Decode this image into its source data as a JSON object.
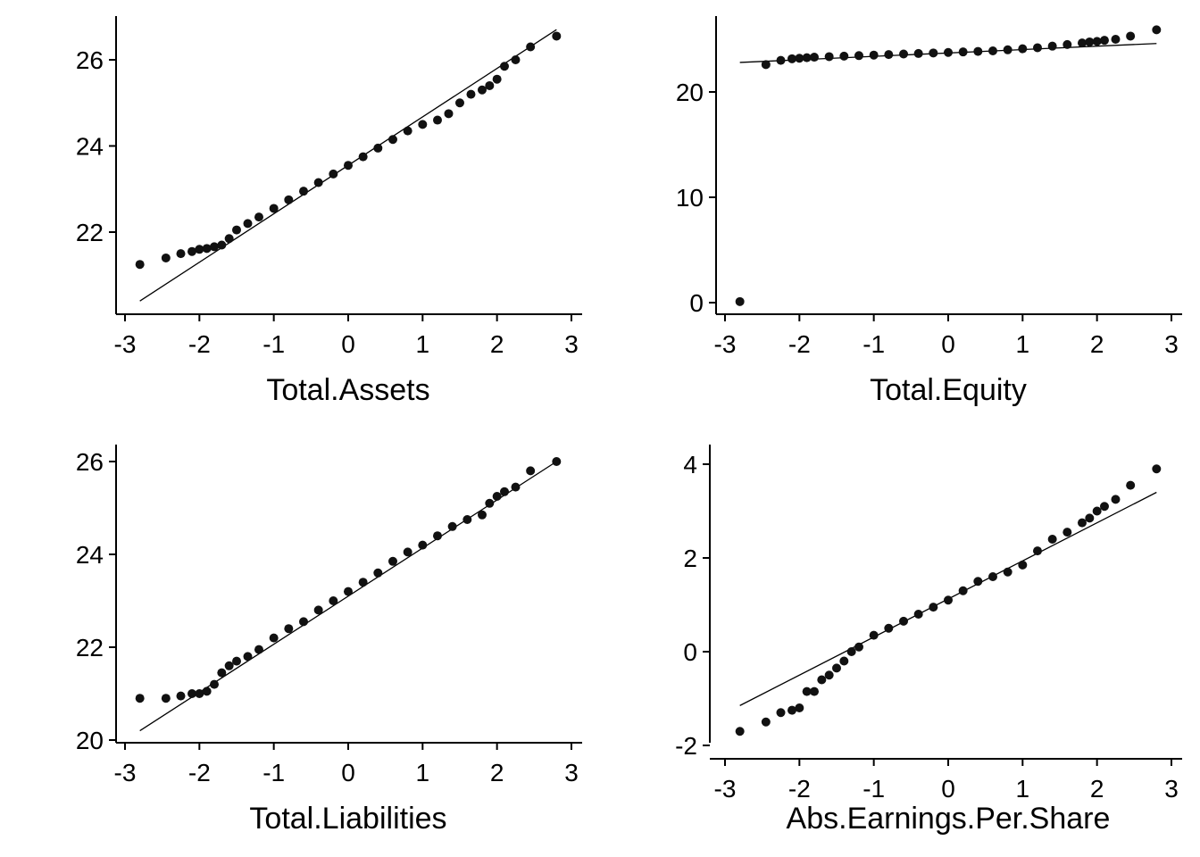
{
  "chart_data": [
    {
      "type": "scatter",
      "title": "",
      "xlabel": "Total.Assets",
      "ylabel": "",
      "xlim": [
        -3,
        3
      ],
      "ylim": [
        20.2,
        27.0
      ],
      "xticks": [
        "-3",
        "-2",
        "-1",
        "0",
        "1",
        "2",
        "3"
      ],
      "yticks": [
        "22",
        "24",
        "26"
      ],
      "reference_line": {
        "from": [
          -2.8,
          20.4
        ],
        "to": [
          2.8,
          26.7
        ]
      },
      "x": [
        -2.8,
        -2.45,
        -2.25,
        -2.1,
        -2.0,
        -1.9,
        -1.8,
        -1.7,
        -1.6,
        -1.5,
        -1.35,
        -1.2,
        -1.0,
        -0.8,
        -0.6,
        -0.4,
        -0.2,
        0.0,
        0.2,
        0.4,
        0.6,
        0.8,
        1.0,
        1.2,
        1.35,
        1.5,
        1.65,
        1.8,
        1.9,
        2.0,
        2.1,
        2.25,
        2.45,
        2.8
      ],
      "y": [
        21.25,
        21.4,
        21.5,
        21.55,
        21.6,
        21.62,
        21.66,
        21.7,
        21.85,
        22.05,
        22.2,
        22.35,
        22.55,
        22.75,
        22.95,
        23.15,
        23.35,
        23.55,
        23.75,
        23.95,
        24.15,
        24.35,
        24.5,
        24.6,
        24.75,
        25.0,
        25.2,
        25.3,
        25.4,
        25.55,
        25.85,
        26.0,
        26.3,
        26.55
      ]
    },
    {
      "type": "scatter",
      "title": "",
      "xlabel": "Total.Equity",
      "ylabel": "",
      "xlim": [
        -3,
        3
      ],
      "ylim": [
        -1,
        27
      ],
      "xticks": [
        "-3",
        "-2",
        "-1",
        "0",
        "1",
        "2",
        "3"
      ],
      "yticks": [
        "0",
        "10",
        "20"
      ],
      "reference_line": {
        "from": [
          -2.8,
          22.8
        ],
        "to": [
          2.8,
          24.6
        ]
      },
      "x": [
        -2.8,
        -2.45,
        -2.25,
        -2.1,
        -2.0,
        -1.9,
        -1.8,
        -1.6,
        -1.4,
        -1.2,
        -1.0,
        -0.8,
        -0.6,
        -0.4,
        -0.2,
        0.0,
        0.2,
        0.4,
        0.6,
        0.8,
        1.0,
        1.2,
        1.4,
        1.6,
        1.8,
        1.9,
        2.0,
        2.1,
        2.25,
        2.45,
        2.8
      ],
      "y": [
        0.1,
        22.6,
        23.0,
        23.15,
        23.2,
        23.25,
        23.3,
        23.35,
        23.4,
        23.45,
        23.5,
        23.55,
        23.6,
        23.65,
        23.7,
        23.75,
        23.8,
        23.85,
        23.9,
        24.0,
        24.1,
        24.2,
        24.35,
        24.5,
        24.65,
        24.75,
        24.8,
        24.9,
        25.0,
        25.3,
        25.9
      ]
    },
    {
      "type": "scatter",
      "title": "",
      "xlabel": "Total.Liabilities",
      "ylabel": "",
      "xlim": [
        -3,
        3
      ],
      "ylim": [
        19.8,
        26.4
      ],
      "xticks": [
        "-3",
        "-2",
        "-1",
        "0",
        "1",
        "2",
        "3"
      ],
      "yticks": [
        "20",
        "22",
        "24",
        "26"
      ],
      "reference_line": {
        "from": [
          -2.8,
          20.2
        ],
        "to": [
          2.8,
          26.0
        ]
      },
      "x": [
        -2.8,
        -2.45,
        -2.25,
        -2.1,
        -2.0,
        -1.9,
        -1.8,
        -1.7,
        -1.6,
        -1.5,
        -1.35,
        -1.2,
        -1.0,
        -0.8,
        -0.6,
        -0.4,
        -0.2,
        0.0,
        0.2,
        0.4,
        0.6,
        0.8,
        1.0,
        1.2,
        1.4,
        1.6,
        1.8,
        1.9,
        2.0,
        2.1,
        2.25,
        2.45,
        2.8
      ],
      "y": [
        20.9,
        20.9,
        20.95,
        21.0,
        21.0,
        21.05,
        21.2,
        21.45,
        21.6,
        21.7,
        21.8,
        21.95,
        22.2,
        22.4,
        22.55,
        22.8,
        23.0,
        23.2,
        23.4,
        23.6,
        23.85,
        24.05,
        24.2,
        24.4,
        24.6,
        24.75,
        24.85,
        25.1,
        25.25,
        25.35,
        25.45,
        25.8,
        26.0
      ]
    },
    {
      "type": "scatter",
      "title": "",
      "xlabel": "Abs.Earnings.Per.Share",
      "ylabel": "",
      "xlim": [
        -3,
        3
      ],
      "ylim": [
        -2.1,
        4.4
      ],
      "xticks": [
        "-3",
        "-2",
        "-1",
        "0",
        "1",
        "2",
        "3"
      ],
      "yticks": [
        "-2",
        "0",
        "2",
        "4"
      ],
      "reference_line": {
        "from": [
          -2.8,
          -1.15
        ],
        "to": [
          2.8,
          3.4
        ]
      },
      "x": [
        -2.8,
        -2.45,
        -2.25,
        -2.1,
        -2.0,
        -1.9,
        -1.8,
        -1.7,
        -1.6,
        -1.5,
        -1.4,
        -1.3,
        -1.2,
        -1.0,
        -0.8,
        -0.6,
        -0.4,
        -0.2,
        0.0,
        0.2,
        0.4,
        0.6,
        0.8,
        1.0,
        1.2,
        1.4,
        1.6,
        1.8,
        1.9,
        2.0,
        2.1,
        2.25,
        2.45,
        2.8
      ],
      "y": [
        -1.7,
        -1.5,
        -1.3,
        -1.25,
        -1.2,
        -0.85,
        -0.85,
        -0.6,
        -0.5,
        -0.35,
        -0.2,
        0.0,
        0.1,
        0.35,
        0.5,
        0.65,
        0.8,
        0.95,
        1.1,
        1.3,
        1.5,
        1.6,
        1.7,
        1.85,
        2.15,
        2.4,
        2.55,
        2.75,
        2.85,
        3.0,
        3.1,
        3.25,
        3.55,
        3.9
      ]
    }
  ]
}
